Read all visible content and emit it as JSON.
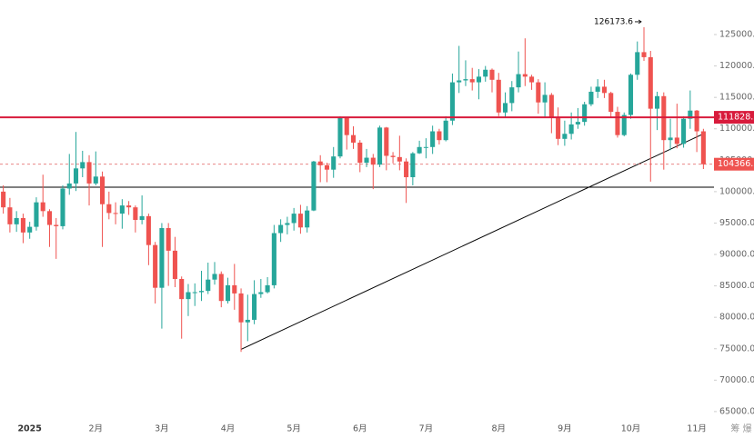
{
  "chart_data": {
    "type": "candlestick",
    "categories": [
      null,
      null,
      null,
      null,
      "2025",
      null,
      null,
      null,
      null,
      null,
      null,
      null,
      null,
      null,
      "2月",
      null,
      null,
      null,
      null,
      null,
      null,
      null,
      null,
      null,
      "3月",
      null,
      null,
      null,
      null,
      null,
      null,
      null,
      null,
      null,
      "4月",
      null,
      null,
      null,
      null,
      null,
      null,
      null,
      null,
      null,
      "5月",
      null,
      null,
      null,
      null,
      null,
      null,
      null,
      null,
      null,
      "6月",
      null,
      null,
      null,
      null,
      null,
      null,
      null,
      null,
      null,
      "7月",
      null,
      null,
      null,
      null,
      null,
      null,
      null,
      null,
      null,
      null,
      "8月",
      null,
      null,
      null,
      null,
      null,
      null,
      null,
      null,
      null,
      "9月",
      null,
      null,
      null,
      null,
      null,
      null,
      null,
      null,
      null,
      "10月",
      null,
      null,
      null,
      null,
      null,
      null,
      null,
      null,
      null,
      "11月",
      null
    ],
    "open": [
      100000,
      97500,
      94800,
      95800,
      93500,
      94400,
      98300,
      96900,
      94700,
      94500,
      100500,
      101300,
      103700,
      104700,
      101300,
      102400,
      98000,
      96600,
      96500,
      97800,
      97500,
      95500,
      96100,
      91500,
      84700,
      94200,
      90600,
      86100,
      82900,
      84000,
      84000,
      84200,
      86000,
      86900,
      82600,
      85100,
      83800,
      79200,
      79600,
      83700,
      84000,
      85100,
      93400,
      94700,
      95000,
      96500,
      94300,
      97000,
      104800,
      104200,
      103500,
      105600,
      111700,
      109000,
      107800,
      104600,
      105400,
      104300,
      110200,
      105700,
      105500,
      104800,
      102300,
      106100,
      107100,
      107100,
      109600,
      108200,
      111300,
      117400,
      117700,
      117900,
      117400,
      118300,
      119400,
      117800,
      112600,
      114100,
      116600,
      118700,
      118300,
      117400,
      114200,
      115400,
      111800,
      108400,
      109200,
      110700,
      111100,
      113900,
      115900,
      116700,
      115700,
      112700,
      109000,
      112200,
      118600,
      122200,
      121400,
      113200,
      115200,
      108200,
      108600,
      107600,
      111600,
      112900,
      109600
    ],
    "high": [
      101000,
      99000,
      96900,
      96500,
      95200,
      99100,
      102700,
      97200,
      95800,
      101000,
      106000,
      109500,
      106500,
      105800,
      106400,
      103200,
      100000,
      98300,
      98800,
      98500,
      97800,
      99400,
      96500,
      92000,
      95000,
      95000,
      92800,
      86500,
      85300,
      85400,
      87400,
      88700,
      88800,
      87300,
      86300,
      88500,
      84600,
      83600,
      85900,
      86100,
      86400,
      94700,
      95600,
      96000,
      97400,
      97900,
      97700,
      104900,
      105800,
      104600,
      107100,
      112000,
      111900,
      110400,
      108200,
      106800,
      106000,
      110500,
      110300,
      106300,
      108900,
      105300,
      106300,
      108100,
      108500,
      110500,
      110000,
      112000,
      118800,
      123200,
      120900,
      119700,
      119500,
      120000,
      119600,
      118900,
      115800,
      117600,
      122300,
      124400,
      118600,
      117900,
      117400,
      115700,
      113400,
      111300,
      112600,
      113300,
      114300,
      116700,
      117900,
      117800,
      115900,
      113500,
      112600,
      118800,
      123900,
      126173.6,
      122400,
      115900,
      115800,
      111600,
      114000,
      112000,
      116100,
      113000,
      110000
    ],
    "low": [
      96500,
      93500,
      93600,
      91800,
      92500,
      93800,
      96000,
      91200,
      89300,
      94000,
      99500,
      100100,
      102300,
      97800,
      101000,
      91200,
      95600,
      94800,
      94100,
      96300,
      93500,
      94800,
      88300,
      82200,
      78200,
      85000,
      84800,
      76600,
      80200,
      81800,
      82600,
      83700,
      85200,
      81600,
      82200,
      81200,
      74500,
      76200,
      78900,
      83100,
      83800,
      84600,
      92000,
      93200,
      93800,
      93300,
      93500,
      96900,
      101500,
      101500,
      102200,
      105300,
      106700,
      106800,
      103100,
      103900,
      100400,
      103900,
      103400,
      104500,
      103400,
      98200,
      101000,
      106000,
      105300,
      106000,
      107500,
      108000,
      110600,
      115700,
      116800,
      116100,
      114700,
      117500,
      115800,
      112000,
      111900,
      112800,
      115800,
      116800,
      116200,
      112400,
      111700,
      109300,
      107400,
      107300,
      108300,
      110000,
      110500,
      113600,
      114900,
      114900,
      111900,
      108600,
      108800,
      111600,
      117800,
      120800,
      101600,
      109800,
      103500,
      106600,
      106900,
      107000,
      110000,
      106300,
      103600
    ],
    "close": [
      97500,
      94800,
      95800,
      93500,
      94400,
      98300,
      96900,
      94700,
      94500,
      100500,
      101300,
      103700,
      104700,
      101300,
      102400,
      98000,
      96600,
      96500,
      97800,
      97500,
      95500,
      96100,
      91500,
      84700,
      94200,
      90600,
      86100,
      82900,
      84000,
      84000,
      84200,
      86000,
      86900,
      82600,
      85100,
      83800,
      79200,
      79600,
      83700,
      84000,
      85100,
      93400,
      94700,
      95000,
      96500,
      94300,
      97000,
      104800,
      104200,
      103500,
      105600,
      111700,
      109000,
      107800,
      104600,
      105400,
      104300,
      110200,
      105700,
      105500,
      104800,
      102300,
      106100,
      107100,
      107100,
      109600,
      108200,
      111300,
      117400,
      117700,
      117900,
      117400,
      118300,
      119400,
      117800,
      112600,
      114100,
      116600,
      118700,
      118300,
      117400,
      114200,
      115400,
      111800,
      108400,
      109200,
      110700,
      111100,
      113900,
      115900,
      116700,
      115700,
      112700,
      109000,
      112200,
      118600,
      122200,
      121400,
      113200,
      115200,
      108200,
      108600,
      107600,
      111600,
      112900,
      109600,
      104366.2
    ],
    "up_color": "#26a69a",
    "down_color": "#ef5350",
    "ylim": [
      63250,
      130500
    ],
    "yticks": [
      {
        "value": 65000,
        "label": "65000.0"
      },
      {
        "value": 70000,
        "label": "70000.0"
      },
      {
        "value": 75000,
        "label": "75000.0"
      },
      {
        "value": 80000,
        "label": "80000.0"
      },
      {
        "value": 85000,
        "label": "85000.0"
      },
      {
        "value": 90000,
        "label": "90000.0"
      },
      {
        "value": 95000,
        "label": "95000.0"
      },
      {
        "value": 100000,
        "label": "100000.0"
      },
      {
        "value": 105000,
        "label": "105000.0"
      },
      {
        "value": 110000,
        "label": "110000.0"
      },
      {
        "value": 115000,
        "label": "115000.0"
      },
      {
        "value": 120000,
        "label": "120000.0"
      },
      {
        "value": 125000,
        "label": "125000.0"
      }
    ],
    "level": {
      "value": 111828.2,
      "color": "#d81b3c"
    },
    "last_price": 104366.2,
    "last_price_color": "#ef5350",
    "hline": {
      "value": 100700,
      "color": "#000000"
    },
    "trendline": {
      "from": [
        36,
        74900
      ],
      "to": [
        106,
        109200
      ],
      "color": "#000000"
    },
    "watermark": "筹 爆"
  }
}
